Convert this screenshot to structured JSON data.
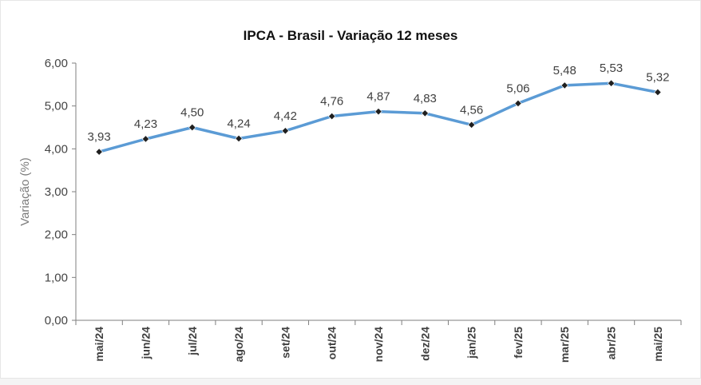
{
  "chart_data": {
    "type": "line",
    "title": "IPCA - Brasil - Variação 12 meses",
    "ylabel": "Variação (%)",
    "xlabel": "",
    "ylim": [
      0,
      6
    ],
    "yticks": [
      "0,00",
      "1,00",
      "2,00",
      "3,00",
      "4,00",
      "5,00",
      "6,00"
    ],
    "categories": [
      "mai/24",
      "jun/24",
      "jul/24",
      "ago/24",
      "set/24",
      "out/24",
      "nov/24",
      "dez/24",
      "jan/25",
      "fev/25",
      "mar/25",
      "abr/25",
      "mai/25"
    ],
    "series": [
      {
        "values": [
          3.93,
          4.23,
          4.5,
          4.24,
          4.42,
          4.76,
          4.87,
          4.83,
          4.56,
          5.06,
          5.48,
          5.53,
          5.32
        ],
        "labels": [
          "3,93",
          "4,23",
          "4,50",
          "4,24",
          "4,42",
          "4,76",
          "4,87",
          "4,83",
          "4,56",
          "5,06",
          "5,48",
          "5,53",
          "5,32"
        ],
        "color": "#5b9bd5",
        "marker_color": "#1f1f1f"
      }
    ],
    "grid": false,
    "legend": "none"
  }
}
